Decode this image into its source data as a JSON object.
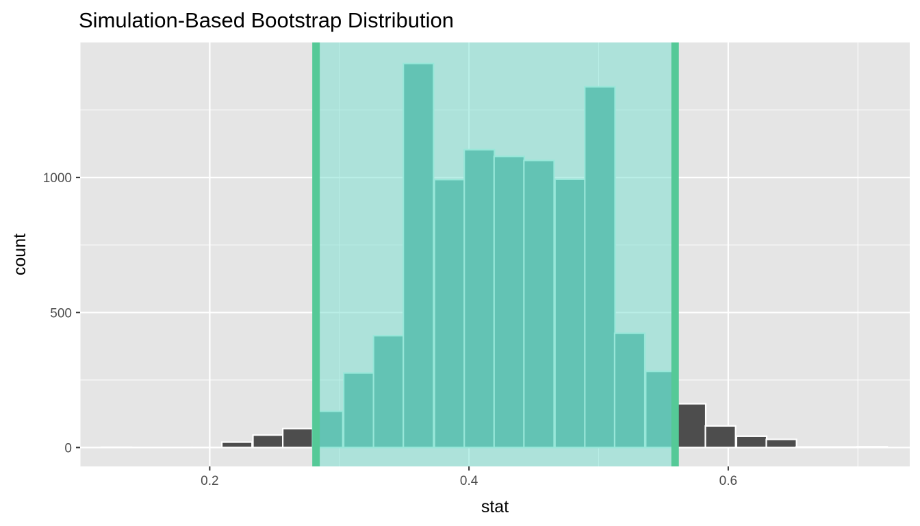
{
  "chart_data": {
    "type": "bar",
    "subtype": "histogram",
    "title": "Simulation-Based Bootstrap Distribution",
    "xlabel": "stat",
    "ylabel": "count",
    "xlim": [
      0.1,
      0.74
    ],
    "ylim": [
      -70,
      1500
    ],
    "x_ticks": [
      0.2,
      0.4,
      0.6
    ],
    "x_tick_labels": [
      "0.2",
      "0.4",
      "0.6"
    ],
    "y_ticks": [
      0,
      500,
      1000
    ],
    "y_tick_labels": [
      "0",
      "500",
      "1000"
    ],
    "grid": true,
    "legend": "none",
    "bin_width": 0.0233,
    "bins": [
      {
        "x": 0.128,
        "count": 1
      },
      {
        "x": 0.151,
        "count": 0
      },
      {
        "x": 0.175,
        "count": 0
      },
      {
        "x": 0.198,
        "count": 0
      },
      {
        "x": 0.221,
        "count": 20
      },
      {
        "x": 0.245,
        "count": 46
      },
      {
        "x": 0.268,
        "count": 70
      },
      {
        "x": 0.291,
        "count": 134
      },
      {
        "x": 0.315,
        "count": 276
      },
      {
        "x": 0.338,
        "count": 414
      },
      {
        "x": 0.361,
        "count": 1422
      },
      {
        "x": 0.385,
        "count": 992
      },
      {
        "x": 0.408,
        "count": 1103
      },
      {
        "x": 0.431,
        "count": 1078
      },
      {
        "x": 0.454,
        "count": 1063
      },
      {
        "x": 0.478,
        "count": 993
      },
      {
        "x": 0.501,
        "count": 1336
      },
      {
        "x": 0.524,
        "count": 423
      },
      {
        "x": 0.548,
        "count": 282
      },
      {
        "x": 0.571,
        "count": 162
      },
      {
        "x": 0.594,
        "count": 80
      },
      {
        "x": 0.618,
        "count": 42
      },
      {
        "x": 0.641,
        "count": 30
      },
      {
        "x": 0.664,
        "count": 2
      },
      {
        "x": 0.688,
        "count": 2
      },
      {
        "x": 0.711,
        "count": 3
      }
    ],
    "confidence_interval": {
      "lower": 0.282,
      "upper": 0.559
    },
    "colors": {
      "panel_background": "#e5e5e5",
      "grid": "#ffffff",
      "bar_outside": "#4d4d4d",
      "bar_inside": "#40a090",
      "bar_outline_outside": "#ffffff",
      "bar_outline_inside": "#b5f0e3",
      "ci_shade": "#80e0d2",
      "ci_line": "#55c997",
      "tick": "#333333"
    }
  }
}
